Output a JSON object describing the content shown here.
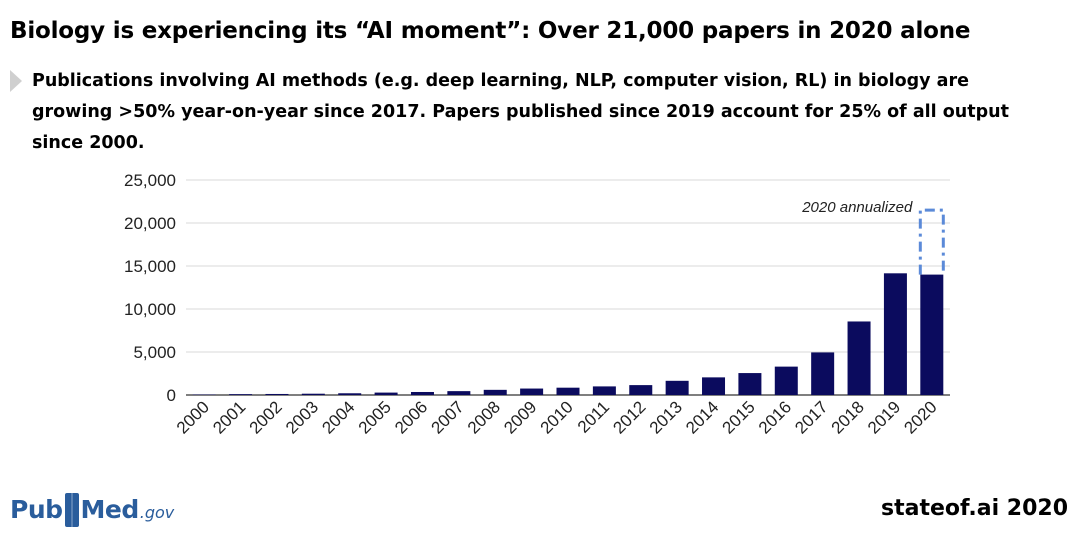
{
  "header": {
    "title": "Biology is experiencing its “AI moment”: Over 21,000 papers in 2020 alone",
    "subtitle": "Publications involving AI methods (e.g. deep learning, NLP, computer vision, RL) in biology are growing >50% year-on-year since 2017. Papers published since 2019 account for 25% of all output since 2000."
  },
  "logo": {
    "part1": "Pub",
    "part2": "Med",
    "suffix": ".gov"
  },
  "footer": {
    "text": "stateof.ai 2020"
  },
  "colors": {
    "bar": "#0b0b5e",
    "annualized_outline": "#5b8ad8",
    "grid": "#d9d9d9"
  },
  "chart_data": {
    "type": "bar",
    "title": "",
    "xlabel": "",
    "ylabel": "",
    "categories": [
      "2000",
      "2001",
      "2002",
      "2003",
      "2004",
      "2005",
      "2006",
      "2007",
      "2008",
      "2009",
      "2010",
      "2011",
      "2012",
      "2013",
      "2014",
      "2015",
      "2016",
      "2017",
      "2018",
      "2019",
      "2020"
    ],
    "series": [
      {
        "values": [
          50,
          100,
          120,
          150,
          200,
          280,
          350,
          450,
          600,
          750,
          850,
          1000,
          1150,
          1650,
          2050,
          2550,
          3300,
          4950,
          8550,
          14150,
          14000
        ]
      }
    ],
    "annualized": {
      "category": "2020",
      "value": 21500,
      "label": "2020 annualized"
    },
    "yticks": [
      0,
      5000,
      10000,
      15000,
      20000,
      25000
    ],
    "ytick_labels": [
      "0",
      "5,000",
      "10,000",
      "15,000",
      "20,000",
      "25,000"
    ],
    "ylim": [
      0,
      25000
    ],
    "grid": true,
    "legend": "none"
  }
}
